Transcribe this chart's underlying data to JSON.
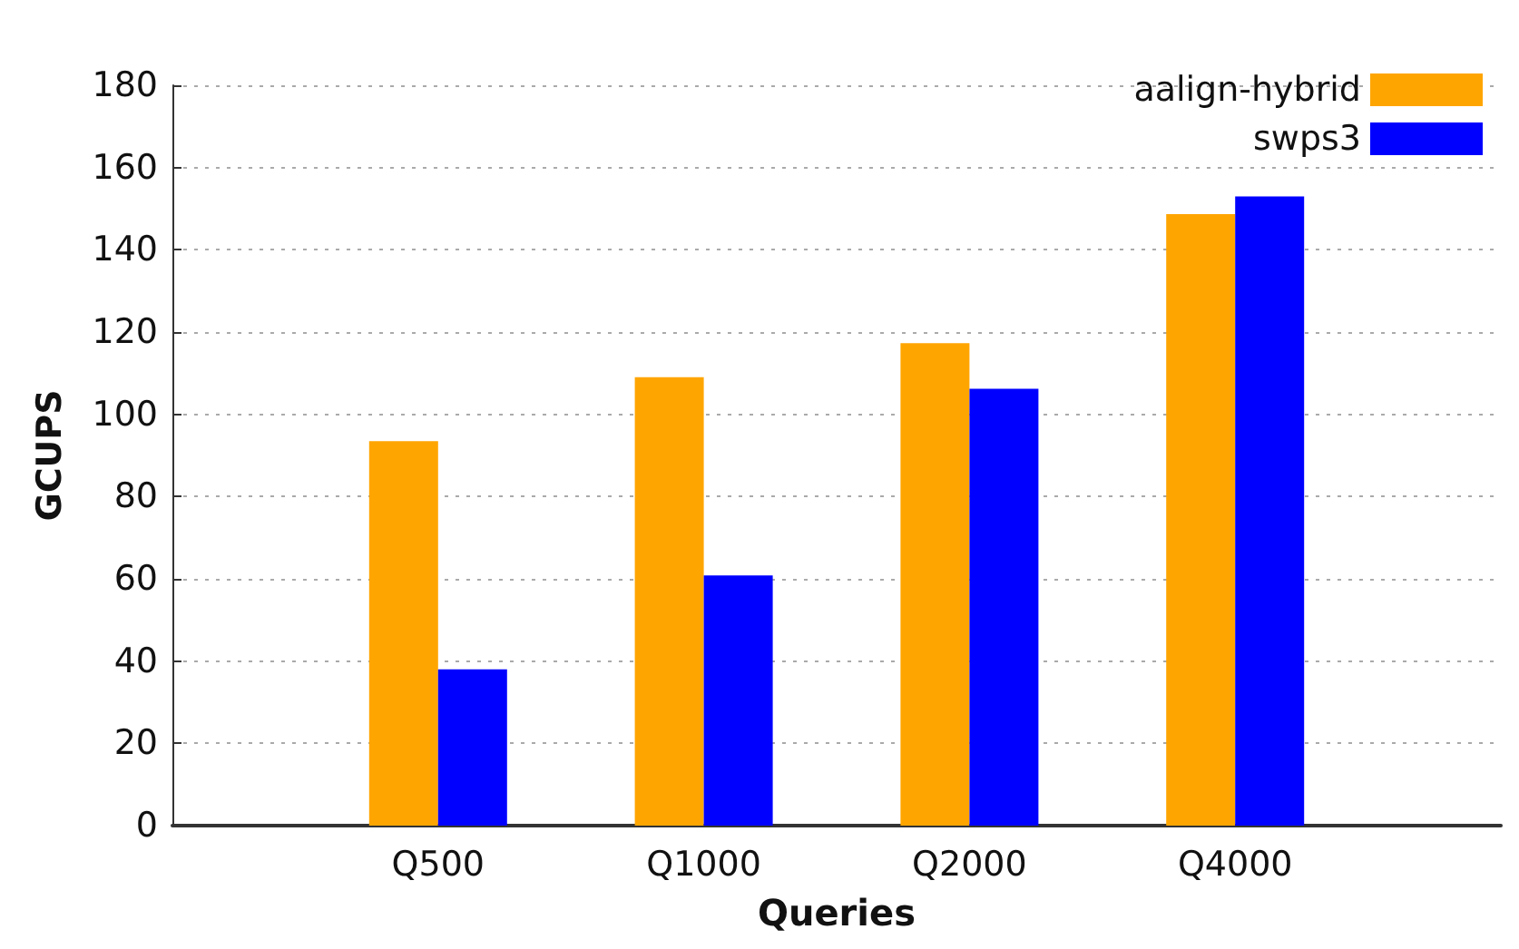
{
  "chart_data": {
    "type": "bar",
    "xlabel": "Queries",
    "ylabel": "GCUPS",
    "categories": [
      null,
      "Q500",
      "Q1000",
      "Q2000",
      "Q4000",
      null
    ],
    "series": [
      {
        "name": "aalign-hybrid",
        "color": "#ffa500",
        "values": [
          null,
          93.5,
          109,
          117.3,
          148.7,
          null
        ]
      },
      {
        "name": "swps3",
        "color": "#0000ff",
        "values": [
          null,
          38,
          60.8,
          106.2,
          153,
          null
        ]
      }
    ],
    "ylim": [
      0,
      180
    ],
    "yticks": [
      0,
      20,
      40,
      60,
      80,
      100,
      120,
      140,
      160,
      180
    ],
    "grid": "y",
    "legend": "top right"
  }
}
